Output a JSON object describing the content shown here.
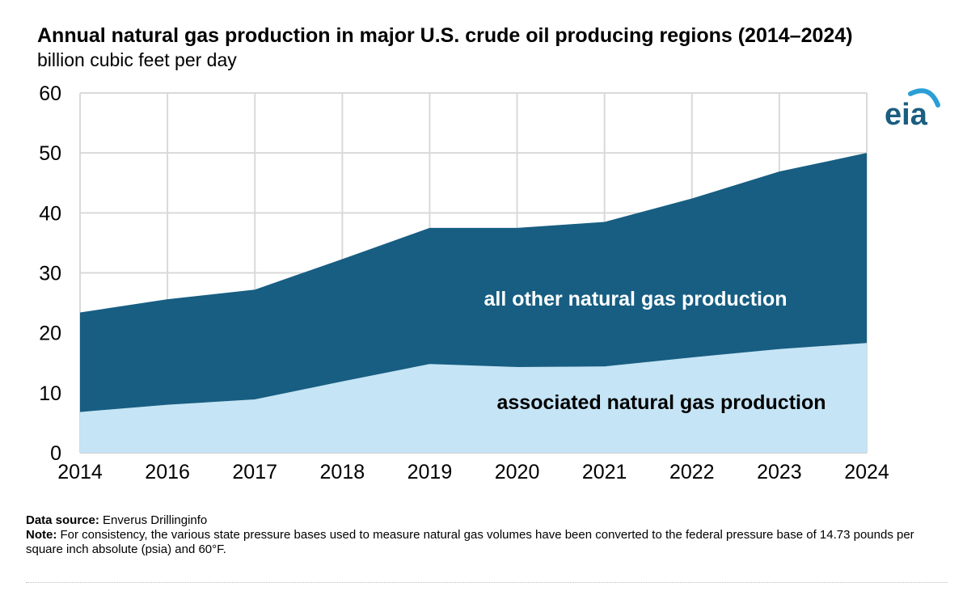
{
  "header": {
    "title": "Annual natural gas production in major U.S. crude oil producing regions (2014–2024)",
    "subtitle": "billion cubic feet per day"
  },
  "logo": {
    "text": "eia",
    "color": "#1a5e80",
    "arc_color": "#2a9fd6"
  },
  "chart_data": {
    "type": "area",
    "stacked": true,
    "x": [
      "2014",
      "2016",
      "2017",
      "2018",
      "2019",
      "2020",
      "2021",
      "2022",
      "2023",
      "2024"
    ],
    "ylim": [
      0,
      60
    ],
    "yticks": [
      0,
      10,
      20,
      30,
      40,
      50,
      60
    ],
    "grid": true,
    "series": [
      {
        "name": "associated natural gas production",
        "color": "#c5e4f5",
        "values": [
          6.8,
          8.0,
          8.9,
          11.9,
          14.8,
          14.3,
          14.4,
          15.9,
          17.3,
          18.3
        ]
      },
      {
        "name": "all other natural gas production",
        "color": "#175e82",
        "values": [
          16.6,
          17.6,
          18.3,
          20.4,
          22.7,
          23.2,
          24.1,
          26.5,
          29.6,
          31.7
        ]
      }
    ]
  },
  "footer": {
    "source_label": "Data source:",
    "source_text": "Enverus Drillinginfo",
    "note_label": "Note:",
    "note_text": "For consistency, the various state pressure bases used to measure natural gas volumes have been converted to the federal pressure base of 14.73 pounds per square inch absolute (psia) and 60°F."
  }
}
